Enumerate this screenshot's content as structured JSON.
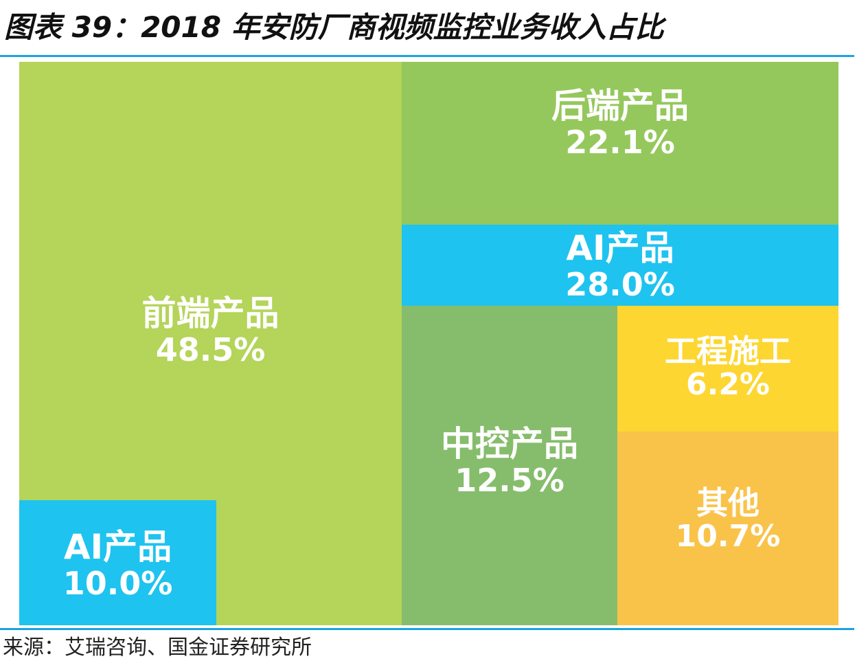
{
  "title": "图表 39：2018 年安防厂商视频监控业务收入占比",
  "source": "来源：艾瑞咨询、国金证券研究所",
  "chart_data": {
    "type": "treemap",
    "items": [
      {
        "id": "front",
        "name": "前端产品",
        "label": "48.5%",
        "value": 48.5,
        "color": "#b4d45a"
      },
      {
        "id": "front-ai",
        "name": "AI产品",
        "label": "10.0%",
        "value": 10.0,
        "color": "#1fc3ef",
        "parent": "front"
      },
      {
        "id": "back",
        "name": "后端产品",
        "label": "22.1%",
        "value": 22.1,
        "color": "#95c85c"
      },
      {
        "id": "back-ai",
        "name": "AI产品",
        "label": "28.0%",
        "value": 28.0,
        "color": "#1fc3ef",
        "parent": "back"
      },
      {
        "id": "center",
        "name": "中控产品",
        "label": "12.5%",
        "value": 12.5,
        "color": "#86bd6c"
      },
      {
        "id": "eng",
        "name": "工程施工",
        "label": "6.2%",
        "value": 6.2,
        "color": "#fdd631"
      },
      {
        "id": "other",
        "name": "其他",
        "label": "10.7%",
        "value": 10.7,
        "color": "#f9c34a"
      }
    ]
  }
}
